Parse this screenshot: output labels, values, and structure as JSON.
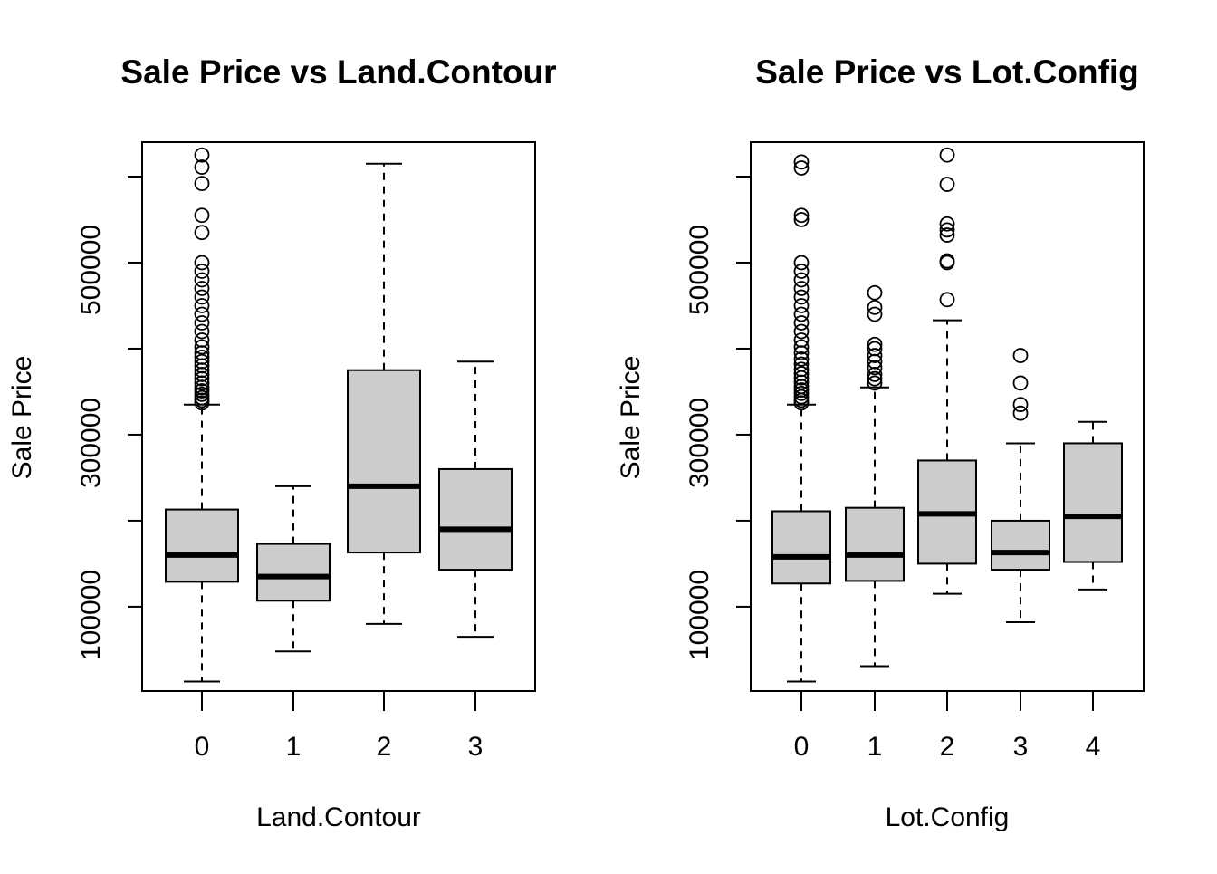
{
  "colors": {
    "box_fill": "#cccccc",
    "stroke": "#000000",
    "background": "#ffffff"
  },
  "chart_data": [
    {
      "type": "boxplot",
      "title": "Sale Price vs Land.Contour",
      "xlabel": "Land.Contour",
      "ylabel": "Sale Price",
      "categories": [
        "0",
        "1",
        "2",
        "3"
      ],
      "yticks": [
        "100000",
        "300000",
        "500000"
      ],
      "ylim": [
        2000,
        640000
      ],
      "grid": false,
      "boxes": [
        {
          "category": "0",
          "whisker_low": 13000,
          "q1": 129000,
          "median": 160000,
          "q3": 213000,
          "whisker_high": 335000,
          "outliers": [
            337000,
            340000,
            343000,
            347000,
            351000,
            355000,
            360000,
            365000,
            370000,
            375000,
            380000,
            385000,
            390000,
            395000,
            402000,
            410000,
            420000,
            430000,
            440000,
            450000,
            460000,
            470000,
            480000,
            490000,
            500000,
            535000,
            555000,
            592000,
            611000,
            625000
          ]
        },
        {
          "category": "1",
          "whisker_low": 48000,
          "q1": 107000,
          "median": 135000,
          "q3": 173000,
          "whisker_high": 240000,
          "outliers": []
        },
        {
          "category": "2",
          "whisker_low": 80000,
          "q1": 163000,
          "median": 240000,
          "q3": 375000,
          "whisker_high": 615000,
          "outliers": []
        },
        {
          "category": "3",
          "whisker_low": 65000,
          "q1": 143000,
          "median": 190000,
          "q3": 260000,
          "whisker_high": 385000,
          "outliers": []
        }
      ]
    },
    {
      "type": "boxplot",
      "title": "Sale Price vs Lot.Config",
      "xlabel": "Lot.Config",
      "ylabel": "Sale Price",
      "categories": [
        "0",
        "1",
        "2",
        "3",
        "4"
      ],
      "yticks": [
        "100000",
        "300000",
        "500000"
      ],
      "ylim": [
        2000,
        640000
      ],
      "grid": false,
      "boxes": [
        {
          "category": "0",
          "whisker_low": 13000,
          "q1": 127000,
          "median": 158000,
          "q3": 211000,
          "whisker_high": 335000,
          "outliers": [
            337000,
            340000,
            344000,
            348000,
            352000,
            356000,
            361000,
            366000,
            371000,
            376000,
            382000,
            388000,
            395000,
            402000,
            410000,
            420000,
            430000,
            440000,
            450000,
            460000,
            470000,
            480000,
            490000,
            500000,
            550000,
            555000,
            610000,
            617000
          ]
        },
        {
          "category": "1",
          "whisker_low": 31000,
          "q1": 130000,
          "median": 160000,
          "q3": 215000,
          "whisker_high": 355000,
          "outliers": [
            360000,
            365000,
            370000,
            378000,
            385000,
            392000,
            400000,
            405000,
            440000,
            448000,
            465000
          ]
        },
        {
          "category": "2",
          "whisker_low": 115000,
          "q1": 150000,
          "median": 208000,
          "q3": 270000,
          "whisker_high": 433000,
          "outliers": [
            457000,
            500000,
            502000,
            532000,
            538000,
            545000,
            591000,
            625000
          ]
        },
        {
          "category": "3",
          "whisker_low": 82000,
          "q1": 143000,
          "median": 163000,
          "q3": 200000,
          "whisker_high": 290000,
          "outliers": [
            325000,
            335000,
            360000,
            392000
          ]
        },
        {
          "category": "4",
          "whisker_low": 120000,
          "q1": 152000,
          "median": 205000,
          "q3": 290000,
          "whisker_high": 315000,
          "outliers": []
        }
      ]
    }
  ]
}
